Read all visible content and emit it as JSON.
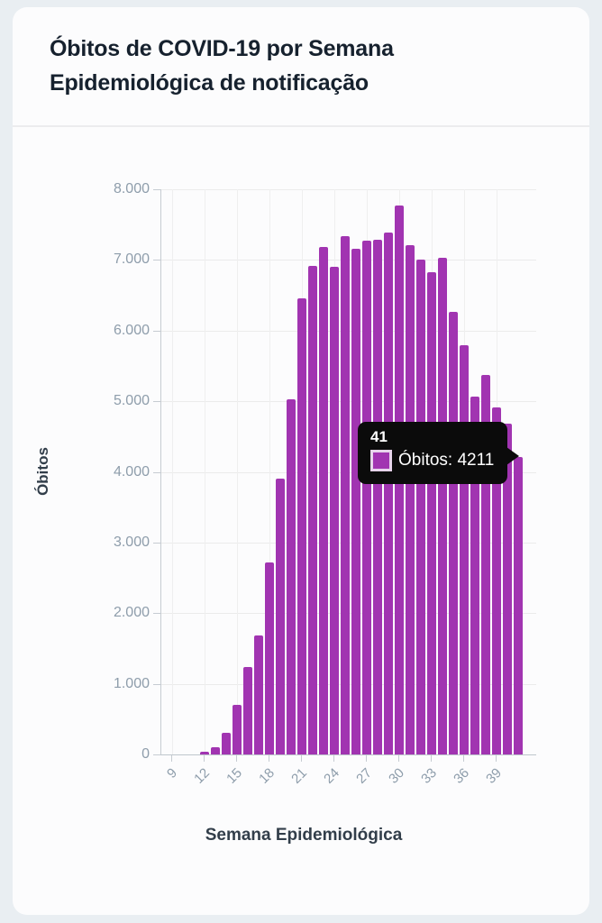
{
  "header": {
    "title_line1": "Óbitos de COVID-19 por Semana",
    "title_line2": "Epidemiológica de notificação"
  },
  "chart_data": {
    "type": "bar",
    "title": "Óbitos de COVID-19 por Semana Epidemiológica de notificação",
    "xlabel": "Semana Epidemiológica",
    "ylabel": "Óbitos",
    "series_name": "Óbitos",
    "x": [
      12,
      13,
      14,
      15,
      16,
      17,
      18,
      19,
      20,
      21,
      22,
      23,
      24,
      25,
      26,
      27,
      28,
      29,
      30,
      31,
      32,
      33,
      34,
      35,
      36,
      37,
      38,
      39,
      40,
      41
    ],
    "values": [
      40,
      100,
      310,
      700,
      1240,
      1690,
      2720,
      3900,
      5030,
      6450,
      6910,
      7180,
      6900,
      7340,
      7160,
      7270,
      7290,
      7390,
      7770,
      7210,
      7000,
      6830,
      7030,
      6270,
      5790,
      5060,
      5370,
      4910,
      4680,
      4211
    ],
    "x_ticks": [
      9,
      12,
      15,
      18,
      21,
      24,
      27,
      30,
      33,
      36,
      39
    ],
    "x_tick_labels": [
      "9",
      "12",
      "15",
      "18",
      "21",
      "24",
      "27",
      "30",
      "33",
      "36",
      "39"
    ],
    "y_ticks": [
      0,
      1000,
      2000,
      3000,
      4000,
      5000,
      6000,
      7000,
      8000
    ],
    "y_tick_labels": [
      "0",
      "1.000",
      "2.000",
      "3.000",
      "4.000",
      "5.000",
      "6.000",
      "7.000",
      "8.000"
    ],
    "ylim": [
      0,
      8000
    ],
    "xlim": [
      9,
      42
    ],
    "grid": true,
    "legend": false,
    "bar_color": "#a134b1"
  },
  "tooltip": {
    "week": "41",
    "text": "Óbitos: 4211",
    "series": "Óbitos",
    "value": 4211
  },
  "colors": {
    "page_bg": "#e9eef2",
    "card_bg": "#fcfcfd",
    "title": "#16212e",
    "bar": "#a134b1",
    "tick_text": "#8e9dab",
    "axis_title": "#323e4a",
    "tooltip_bg": "#0b0b0b",
    "tooltip_text": "#ffffff",
    "swatch_border": "#e7d4eb"
  }
}
